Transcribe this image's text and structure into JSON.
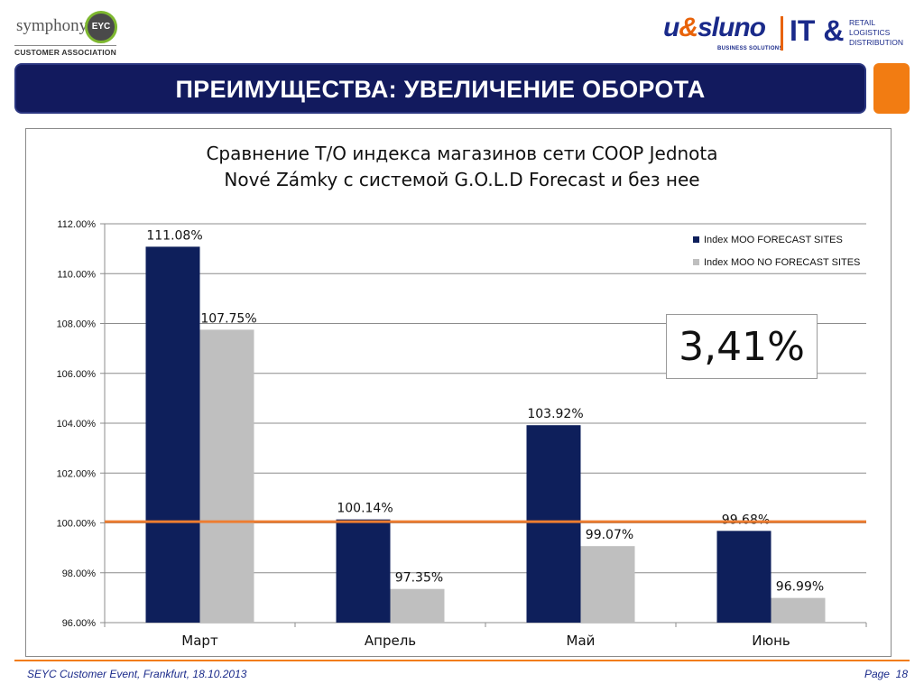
{
  "header": {
    "left_logo": {
      "name": "symphony",
      "badge": "EYC",
      "subtitle": "CUSTOMER ASSOCIATION"
    },
    "right_logo": {
      "brand_pre": "u",
      "brand_amp": "&",
      "brand_post": "sluno",
      "tagline": "BUSINESS SOLUTIONS",
      "it": "IT &",
      "lines": [
        "RETAIL",
        "LOGISTICS",
        "DISTRIBUTION"
      ]
    }
  },
  "title": "ПРЕИМУЩЕСТВА: УВЕЛИЧЕНИЕ ОБОРОТА",
  "highlight_value": "3,41%",
  "footer": {
    "event": "SEYC Customer Event, Frankfurt, 18.10.2013",
    "page_label": "Page",
    "page_number": "18"
  },
  "colors": {
    "title_bar": "#121a5e",
    "accent_orange": "#f27c12",
    "series_1": "#0e1f5b",
    "series_2": "#bfbfbf",
    "reference_line": "#ed7d31"
  },
  "chart_data": {
    "type": "bar",
    "title_lines": [
      "Сравнение Т/О индекса магазинов сети  COOP Jednota",
      "Nové Zámky с системой G.O.L.D Forecast и без нее"
    ],
    "categories": [
      "Март",
      "Апрель",
      "Май",
      "Июнь"
    ],
    "series": [
      {
        "name": "Index MOO FORECAST SITES",
        "values": [
          111.08,
          100.14,
          103.92,
          99.68
        ],
        "labels": [
          "111.08%",
          "100.14%",
          "103.92%",
          "99.68%"
        ]
      },
      {
        "name": "Index MOO NO FORECAST SITES",
        "values": [
          107.75,
          97.35,
          99.07,
          96.99
        ],
        "labels": [
          "107.75%",
          "97.35%",
          "99.07%",
          "96.99%"
        ]
      }
    ],
    "ylim": [
      96,
      112
    ],
    "yticks": [
      96,
      98,
      100,
      102,
      104,
      106,
      108,
      110,
      112
    ],
    "ytick_labels": [
      "96.00%",
      "98.00%",
      "100.00%",
      "102.00%",
      "104.00%",
      "106.00%",
      "108.00%",
      "110.00%",
      "112.00%"
    ],
    "reference_line": 100.05,
    "grid": true,
    "legend_position": "top-right"
  }
}
